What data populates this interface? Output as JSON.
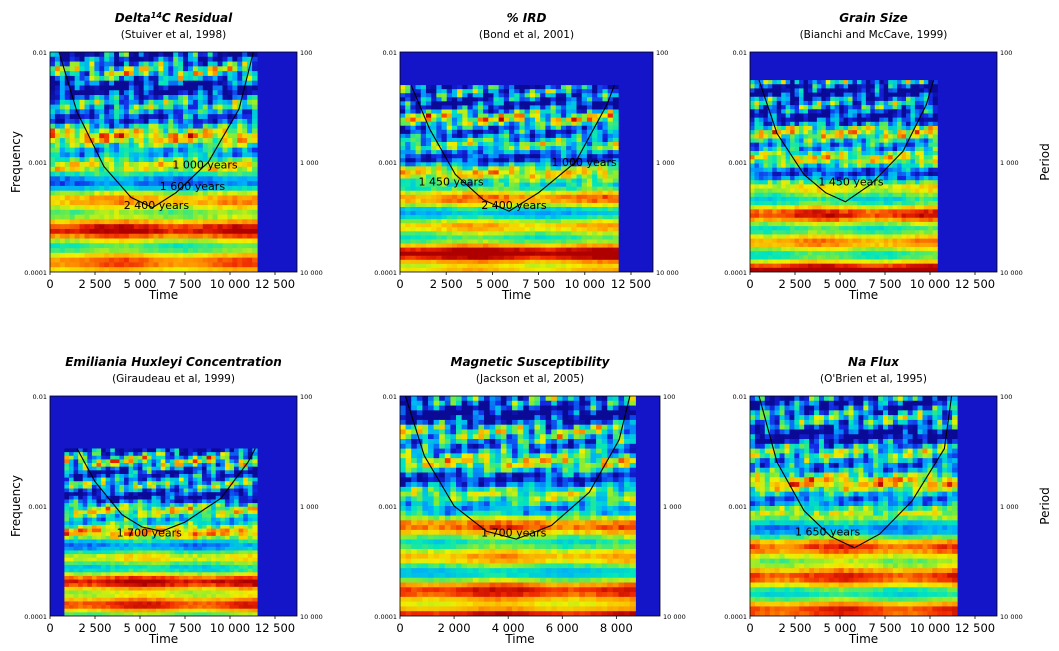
{
  "chart_data": [
    {
      "type": "heatmap",
      "title": "Delta",
      "title_sup": "14",
      "title_rest": "C Residual",
      "subtitle": "(Stuiver et al, 1998)",
      "xlabel": "Time",
      "ylabel": "Frequency",
      "y2label": "",
      "xlim": [
        0,
        12500
      ],
      "xticks": [
        "0",
        "2 500",
        "5 000",
        "7 500",
        "10 000",
        "12 500"
      ],
      "yticks": [
        "0.01",
        "0.001",
        "0.0001"
      ],
      "y2ticks": [
        "100",
        "1 000",
        "10 000"
      ],
      "data_extent": [
        0,
        11500
      ],
      "max_period": 100,
      "annotations": [
        {
          "text": "1 000 years",
          "x": 6800,
          "period": 1050
        },
        {
          "text": "1 600 years",
          "x": 6100,
          "period": 1650
        },
        {
          "text": "2 400 years",
          "x": 4100,
          "period": 2450
        }
      ],
      "coi": [
        [
          500,
          100
        ],
        [
          1500,
          350
        ],
        [
          3000,
          1100
        ],
        [
          4500,
          2100
        ],
        [
          5700,
          2600
        ],
        [
          7000,
          1900
        ],
        [
          8800,
          1000
        ],
        [
          10500,
          330
        ],
        [
          11300,
          100
        ]
      ]
    },
    {
      "type": "heatmap",
      "title": "% IRD",
      "subtitle": "(Bond et al, 2001)",
      "xlabel": "Time",
      "ylabel": "",
      "y2label": "",
      "xlim": [
        0,
        12500
      ],
      "xticks": [
        "0",
        "2 500",
        "5 000",
        "7 500",
        "10 000",
        "12 500"
      ],
      "yticks": [
        "0.01",
        "0.001",
        "0.0001"
      ],
      "y2ticks": [
        "100",
        "1 000",
        "10 000"
      ],
      "data_extent": [
        0,
        11800
      ],
      "max_period": 200,
      "annotations": [
        {
          "text": "1 000 years",
          "x": 8200,
          "period": 1000
        },
        {
          "text": "1 450 years",
          "x": 1000,
          "period": 1500
        },
        {
          "text": "2 400 years",
          "x": 4400,
          "period": 2450
        }
      ],
      "coi": [
        [
          600,
          200
        ],
        [
          1600,
          500
        ],
        [
          3000,
          1300
        ],
        [
          4500,
          2200
        ],
        [
          5900,
          2800
        ],
        [
          7500,
          1900
        ],
        [
          9500,
          1000
        ],
        [
          11200,
          300
        ],
        [
          11600,
          200
        ]
      ]
    },
    {
      "type": "heatmap",
      "title": "Grain Size",
      "subtitle": "(Bianchi and McCave, 1999)",
      "xlabel": "Time",
      "ylabel": "",
      "y2label": "Period",
      "xlim": [
        0,
        12500
      ],
      "xticks": [
        "0",
        "2 500",
        "5 000",
        "7 500",
        "10 000",
        "12 500"
      ],
      "yticks": [
        "0.01",
        "0.001",
        "0.0001"
      ],
      "y2ticks": [
        "100",
        "1 000",
        "10 000"
      ],
      "data_extent": [
        0,
        10400
      ],
      "max_period": 180,
      "annotations": [
        {
          "text": "1 450 years",
          "x": 3800,
          "period": 1500
        }
      ],
      "coi": [
        [
          500,
          180
        ],
        [
          1500,
          550
        ],
        [
          3000,
          1300
        ],
        [
          4200,
          1900
        ],
        [
          5300,
          2300
        ],
        [
          6700,
          1600
        ],
        [
          8500,
          800
        ],
        [
          9800,
          300
        ],
        [
          10200,
          180
        ]
      ]
    },
    {
      "type": "heatmap",
      "title": "Emiliania Huxleyi Concentration",
      "subtitle": "(Giraudeau et al, 1999)",
      "xlabel": "Time",
      "ylabel": "Frequency",
      "y2label": "",
      "xlim": [
        0,
        12500
      ],
      "xticks": [
        "0",
        "2 500",
        "5 000",
        "7 500",
        "10 000",
        "12 500"
      ],
      "yticks": [
        "0.01",
        "0.001",
        "0.0001"
      ],
      "y2ticks": [
        "100",
        "1 000",
        "10 000"
      ],
      "data_extent": [
        800,
        11500
      ],
      "max_period": 300,
      "annotations": [
        {
          "text": "1 700 years",
          "x": 3700,
          "period": 1750
        }
      ],
      "coi": [
        [
          1500,
          300
        ],
        [
          2500,
          600
        ],
        [
          4000,
          1200
        ],
        [
          5100,
          1550
        ],
        [
          6200,
          1700
        ],
        [
          7500,
          1400
        ],
        [
          9500,
          850
        ],
        [
          11000,
          400
        ],
        [
          11400,
          300
        ]
      ]
    },
    {
      "type": "heatmap",
      "title": "Magnetic Susceptibility",
      "subtitle": "(Jackson et al, 2005)",
      "xlabel": "Time",
      "ylabel": "",
      "y2label": "",
      "xlim": [
        0,
        8800
      ],
      "xticks": [
        "0",
        "2 000",
        "4 000",
        "6 000",
        "8 000"
      ],
      "yticks": [
        "0.01",
        "0.001",
        "0.0001"
      ],
      "y2ticks": [
        "100",
        "1 000",
        "10 000"
      ],
      "data_extent": [
        0,
        8700
      ],
      "max_period": 100,
      "annotations": [
        {
          "text": "1 700 years",
          "x": 3000,
          "period": 1750
        }
      ],
      "coi": [
        [
          200,
          100
        ],
        [
          900,
          350
        ],
        [
          2000,
          1000
        ],
        [
          3200,
          1700
        ],
        [
          4300,
          2000
        ],
        [
          5600,
          1500
        ],
        [
          7000,
          750
        ],
        [
          8100,
          250
        ],
        [
          8500,
          100
        ]
      ]
    },
    {
      "type": "heatmap",
      "title": "Na Flux",
      "subtitle": "(O'Brien et al, 1995)",
      "xlabel": "Time",
      "ylabel": "",
      "y2label": "Period",
      "xlim": [
        0,
        12500
      ],
      "xticks": [
        "0",
        "2 500",
        "5 000",
        "7 500",
        "10 000",
        "12 500"
      ],
      "yticks": [
        "0.01",
        "0.001",
        "0.0001"
      ],
      "y2ticks": [
        "100",
        "1 000",
        "10 000"
      ],
      "data_extent": [
        0,
        11500
      ],
      "max_period": 100,
      "annotations": [
        {
          "text": "1 650 years",
          "x": 2500,
          "period": 1700
        }
      ],
      "coi": [
        [
          500,
          100
        ],
        [
          1500,
          400
        ],
        [
          3000,
          1100
        ],
        [
          4500,
          1900
        ],
        [
          5800,
          2400
        ],
        [
          7200,
          1800
        ],
        [
          9000,
          900
        ],
        [
          10800,
          300
        ],
        [
          11200,
          100
        ]
      ]
    }
  ]
}
